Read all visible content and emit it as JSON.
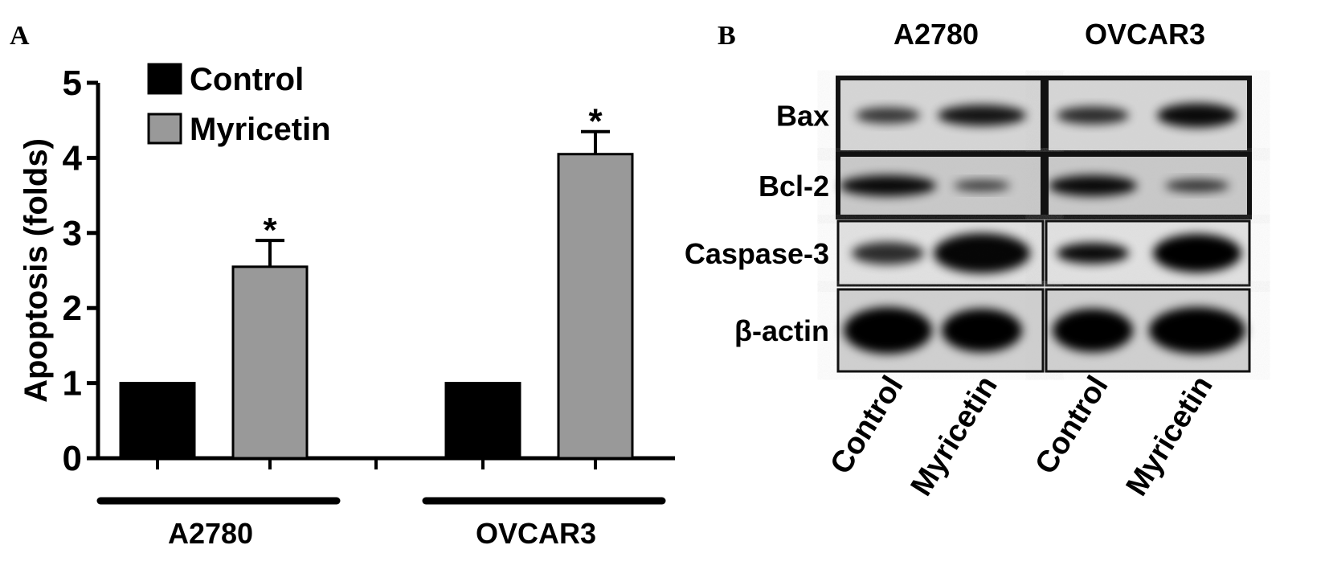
{
  "chart_data": {
    "type": "bar",
    "panel_label": "A",
    "y_label": "Apoptosis (folds)",
    "categories": [
      "A2780",
      "OVCAR3"
    ],
    "series": [
      {
        "name": "Control",
        "color": "#000000",
        "values": [
          1,
          1
        ]
      },
      {
        "name": "Myricetin",
        "color": "#999999",
        "values": [
          2.55,
          4.05
        ],
        "errors": [
          0.35,
          0.3
        ],
        "markers": [
          "*",
          "*"
        ]
      }
    ],
    "ylim": [
      0,
      5
    ],
    "yticks": [
      0,
      1,
      2,
      3,
      4,
      5
    ],
    "legend": "upper-left"
  },
  "blot": {
    "panel_label": "B",
    "cell_lines": [
      "A2780",
      "OVCAR3"
    ],
    "proteins": [
      "Bax",
      "Bcl-2",
      "Caspase-3",
      "β-actin"
    ],
    "lanes": [
      "Control",
      "Myricetin",
      "Control",
      "Myricetin"
    ]
  }
}
